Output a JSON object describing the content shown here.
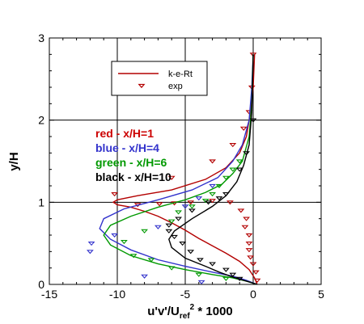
{
  "chart_data": {
    "type": "line",
    "xlabel": "u'v'/U_ref^2 * 1000",
    "xlabel_parts": {
      "main": "u'v'/U",
      "sub": "ref",
      "sup": "2",
      "tail": " * 1000"
    },
    "ylabel": "y/H",
    "xlim": [
      -15,
      5
    ],
    "ylim": [
      0,
      3
    ],
    "xticks": [
      "-15",
      "-10",
      "-5",
      "0",
      "5"
    ],
    "yticks": [
      "0",
      "1",
      "2",
      "3"
    ],
    "grid": true,
    "legend": {
      "position": "upper-middle",
      "entries": [
        {
          "label": "k-e-Rt",
          "kind": "line",
          "color": "#b30000"
        },
        {
          "label": "exp",
          "kind": "triangle",
          "color": "#b30000"
        }
      ]
    },
    "annotations": [
      {
        "text": "red - x/H=1",
        "color": "#cc0000"
      },
      {
        "text": "blue - x/H=4",
        "color": "#3333cc"
      },
      {
        "text": "green - x/H=6",
        "color": "#009900"
      },
      {
        "text": "black - x/H=10",
        "color": "#000000"
      }
    ],
    "series": [
      {
        "color": "#b30000",
        "line": {
          "x": [
            0.3,
            0.1,
            -0.3,
            -1.0,
            -2.0,
            -3.0,
            -4.0,
            -5.0,
            -6.0,
            -7.0,
            -8.0,
            -9.0,
            -10.0,
            -10.3,
            -10.0,
            -8.5,
            -6.0,
            -3.5,
            -2.0,
            -1.0,
            -0.5,
            -0.2,
            0.0,
            0.1
          ],
          "y": [
            0.0,
            0.08,
            0.18,
            0.28,
            0.38,
            0.47,
            0.56,
            0.66,
            0.75,
            0.83,
            0.89,
            0.94,
            0.97,
            1.0,
            1.03,
            1.08,
            1.15,
            1.28,
            1.42,
            1.6,
            1.8,
            2.1,
            2.4,
            2.8
          ]
        },
        "exp": {
          "x": [
            0.3,
            0.2,
            0.0,
            -0.2,
            -0.3,
            -0.3,
            -0.3,
            -0.6,
            -0.5,
            -0.9,
            -1.7,
            -3.0,
            -4.6,
            -5.8,
            -6.9,
            -8.5,
            -10.2,
            -6.0,
            -3.0,
            -1.5,
            -0.7,
            -0.3,
            -0.1,
            0.0
          ],
          "x_note": "",
          "y": [
            0.05,
            0.15,
            0.25,
            0.33,
            0.42,
            0.5,
            0.6,
            0.7,
            0.8,
            0.9,
            1.0,
            1.02,
            1.0,
            0.99,
            0.98,
            0.97,
            1.1,
            1.3,
            1.5,
            1.7,
            1.9,
            2.1,
            2.4,
            2.8
          ]
        }
      },
      {
        "color": "#3333cc",
        "line": {
          "x": [
            0.3,
            -0.5,
            -1.5,
            -3.0,
            -5.0,
            -7.0,
            -9.0,
            -10.5,
            -11.3,
            -11.0,
            -9.5,
            -7.0,
            -4.5,
            -2.6,
            -1.5,
            -0.8,
            -0.3,
            -0.1,
            0.0
          ],
          "y": [
            0.0,
            0.05,
            0.1,
            0.15,
            0.22,
            0.3,
            0.42,
            0.55,
            0.68,
            0.8,
            0.92,
            1.03,
            1.15,
            1.3,
            1.5,
            1.7,
            2.0,
            2.4,
            2.8
          ]
        },
        "exp": {
          "x": [
            -3.8,
            -8.0,
            -12.0,
            -11.9,
            -10.2,
            -7.0,
            -5.0,
            -4.0,
            -3.0
          ],
          "y": [
            0.03,
            0.1,
            0.4,
            0.5,
            0.6,
            0.7,
            0.95,
            1.05,
            1.2
          ]
        }
      },
      {
        "color": "#009900",
        "line": {
          "x": [
            0.3,
            -0.5,
            -1.5,
            -3.0,
            -5.0,
            -7.0,
            -9.0,
            -10.5,
            -11.0,
            -10.5,
            -9.0,
            -7.0,
            -5.0,
            -3.5,
            -2.3,
            -1.5,
            -0.8,
            -0.3,
            -0.1,
            0.0
          ],
          "y": [
            0.0,
            0.04,
            0.08,
            0.12,
            0.18,
            0.25,
            0.35,
            0.48,
            0.6,
            0.72,
            0.83,
            0.94,
            1.03,
            1.12,
            1.22,
            1.35,
            1.5,
            1.8,
            2.2,
            2.8
          ]
        },
        "exp": {
          "x": [
            -2.0,
            -4.0,
            -6.0,
            -7.5,
            -8.8,
            -9.5,
            -8.0,
            -6.0,
            -5.5,
            -4.5,
            -3.5,
            -3.0,
            -2.5,
            -2.0,
            -1.5,
            -1.0
          ],
          "y": [
            0.07,
            0.12,
            0.2,
            0.3,
            0.35,
            0.52,
            0.65,
            0.77,
            0.88,
            0.95,
            1.02,
            1.1,
            1.2,
            1.3,
            1.4,
            1.5
          ]
        }
      },
      {
        "color": "#000000",
        "line": {
          "x": [
            0.3,
            -0.5,
            -1.5,
            -2.5,
            -3.5,
            -5.0,
            -6.0,
            -6.2,
            -5.8,
            -4.5,
            -3.0,
            -2.0,
            -1.2,
            -0.7,
            -0.3,
            -0.1,
            0.0
          ],
          "y": [
            0.0,
            0.04,
            0.09,
            0.15,
            0.22,
            0.32,
            0.45,
            0.55,
            0.65,
            0.8,
            0.95,
            1.08,
            1.25,
            1.45,
            1.7,
            2.1,
            2.8
          ]
        },
        "exp": {
          "x": [
            -1.0,
            -1.5,
            -2.0,
            -3.0,
            -3.9,
            -4.6,
            -5.2,
            -5.8,
            -6.2,
            -6.2,
            -5.5,
            -4.5,
            -3.3,
            -2.5,
            -2.0,
            -1.0,
            -0.5,
            0.0
          ],
          "y": [
            0.07,
            0.12,
            0.18,
            0.25,
            0.3,
            0.4,
            0.5,
            0.58,
            0.65,
            0.72,
            0.8,
            0.9,
            1.0,
            1.05,
            1.1,
            1.4,
            1.6,
            2.0
          ]
        }
      }
    ]
  }
}
